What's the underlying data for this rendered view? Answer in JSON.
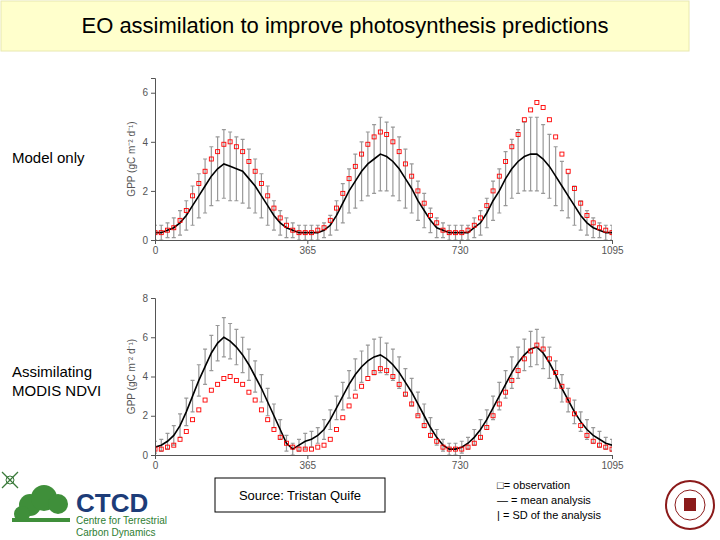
{
  "slide": {
    "title": "EO assimilation to improve photosynthesis predictions",
    "source": "Source: Tristan Quife",
    "key": [
      "□= observation",
      "— = mean analysis",
      "| = SD of the analysis"
    ],
    "logo": {
      "name": "CTCD",
      "lines": [
        "Centre for Terrestrial",
        "Carbon Dynamics"
      ]
    }
  },
  "chart_data": [
    {
      "type": "line",
      "title": "Model only",
      "y_label": "GPP (gC m⁻² d⁻¹)",
      "x": [
        0,
        15,
        30,
        45,
        60,
        75,
        90,
        105,
        120,
        135,
        150,
        165,
        180,
        195,
        210,
        225,
        240,
        255,
        270,
        285,
        300,
        315,
        330,
        345,
        360,
        375,
        390,
        405,
        420,
        435,
        450,
        465,
        480,
        495,
        510,
        525,
        540,
        555,
        570,
        585,
        600,
        615,
        630,
        645,
        660,
        675,
        690,
        705,
        720,
        735,
        750,
        765,
        780,
        795,
        810,
        825,
        840,
        855,
        870,
        885,
        900,
        915,
        930,
        945,
        960,
        975,
        990,
        1005,
        1020,
        1035,
        1050,
        1065,
        1080,
        1095
      ],
      "xlim": [
        0,
        1095
      ],
      "xticks": [
        0,
        365,
        730,
        1095
      ],
      "ylim": [
        0,
        6.6
      ],
      "yticks": [
        0,
        2,
        4,
        6
      ],
      "series": [
        {
          "type": "line",
          "color": "#000000",
          "line_style": "solid",
          "values": [
            0.3,
            0.3,
            0.4,
            0.5,
            0.7,
            1.0,
            1.4,
            1.8,
            2.2,
            2.6,
            2.9,
            3.1,
            3.0,
            2.9,
            2.8,
            2.5,
            2.2,
            1.8,
            1.4,
            1.0,
            0.7,
            0.5,
            0.4,
            0.3,
            0.3,
            0.3,
            0.3,
            0.4,
            0.6,
            1.0,
            1.5,
            2.0,
            2.4,
            2.8,
            3.1,
            3.3,
            3.5,
            3.4,
            3.2,
            2.9,
            2.5,
            2.1,
            1.6,
            1.2,
            0.8,
            0.5,
            0.4,
            0.3,
            0.3,
            0.3,
            0.3,
            0.5,
            0.7,
            1.1,
            1.6,
            2.0,
            2.5,
            2.9,
            3.2,
            3.4,
            3.5,
            3.5,
            3.3,
            3.0,
            2.6,
            2.2,
            1.8,
            1.4,
            1.0,
            0.7,
            0.5,
            0.4,
            0.3,
            0.3
          ],
          "errors": [
            0.3,
            0.3,
            0.3,
            0.4,
            0.5,
            0.6,
            0.8,
            0.9,
            1.1,
            1.2,
            1.3,
            1.4,
            1.4,
            1.3,
            1.3,
            1.2,
            1.1,
            0.9,
            0.8,
            0.6,
            0.5,
            0.4,
            0.3,
            0.3,
            0.3,
            0.3,
            0.3,
            0.3,
            0.4,
            0.6,
            0.8,
            0.9,
            1.1,
            1.2,
            1.3,
            1.4,
            1.5,
            1.4,
            1.4,
            1.3,
            1.2,
            1.0,
            0.8,
            0.7,
            0.5,
            0.4,
            0.3,
            0.3,
            0.3,
            0.3,
            0.3,
            0.4,
            0.5,
            0.6,
            0.8,
            0.9,
            1.1,
            1.2,
            1.3,
            1.4,
            1.5,
            1.5,
            1.4,
            1.3,
            1.2,
            1.0,
            0.9,
            0.8,
            0.6,
            0.5,
            0.4,
            0.3,
            0.3,
            0.3
          ]
        },
        {
          "type": "scatter",
          "color": "#ff0000",
          "marker": "square",
          "values": [
            0.3,
            0.3,
            0.4,
            0.5,
            0.8,
            1.2,
            1.8,
            2.3,
            2.8,
            3.3,
            3.6,
            3.9,
            4.0,
            3.8,
            3.6,
            3.2,
            2.8,
            2.3,
            1.8,
            1.3,
            0.9,
            0.6,
            0.4,
            0.3,
            0.3,
            0.3,
            0.4,
            0.5,
            0.8,
            1.3,
            1.9,
            2.5,
            3.0,
            3.5,
            3.9,
            4.2,
            4.4,
            4.3,
            4.0,
            3.6,
            3.1,
            2.6,
            2.0,
            1.5,
            1.0,
            0.7,
            0.4,
            0.3,
            0.3,
            0.3,
            0.4,
            0.6,
            0.9,
            1.4,
            2.0,
            2.6,
            3.2,
            3.8,
            4.3,
            4.9,
            5.3,
            5.6,
            5.4,
            4.9,
            4.2,
            3.5,
            2.8,
            2.1,
            1.5,
            1.0,
            0.7,
            0.5,
            0.4,
            0.3
          ]
        }
      ]
    },
    {
      "type": "line",
      "title": "Assimilating MODIS NDVI",
      "y_label": "GPP (gC m⁻² d⁻¹)",
      "x": [
        0,
        15,
        30,
        45,
        60,
        75,
        90,
        105,
        120,
        135,
        150,
        165,
        180,
        195,
        210,
        225,
        240,
        255,
        270,
        285,
        300,
        315,
        330,
        345,
        360,
        375,
        390,
        405,
        420,
        435,
        450,
        465,
        480,
        495,
        510,
        525,
        540,
        555,
        570,
        585,
        600,
        615,
        630,
        645,
        660,
        675,
        690,
        705,
        720,
        735,
        750,
        765,
        780,
        795,
        810,
        825,
        840,
        855,
        870,
        885,
        900,
        915,
        930,
        945,
        960,
        975,
        990,
        1005,
        1020,
        1035,
        1050,
        1065,
        1080,
        1095
      ],
      "xlim": [
        0,
        1095
      ],
      "xticks": [
        0,
        365,
        730,
        1095
      ],
      "ylim": [
        0,
        8
      ],
      "yticks": [
        0,
        2,
        4,
        6,
        8
      ],
      "series": [
        {
          "type": "line",
          "color": "#000000",
          "line_style": "solid",
          "values": [
            0.4,
            0.5,
            0.7,
            1.0,
            1.5,
            2.2,
            3.0,
            3.8,
            4.5,
            5.2,
            5.7,
            6.0,
            5.8,
            5.5,
            5.1,
            4.6,
            4.0,
            3.4,
            2.7,
            2.0,
            1.3,
            0.6,
            0.3,
            0.5,
            0.7,
            0.8,
            1.0,
            1.3,
            1.8,
            2.4,
            3.0,
            3.6,
            4.1,
            4.5,
            4.8,
            5.0,
            5.1,
            4.9,
            4.6,
            4.2,
            3.7,
            3.2,
            2.6,
            2.0,
            1.4,
            0.9,
            0.5,
            0.3,
            0.3,
            0.4,
            0.6,
            0.9,
            1.3,
            1.8,
            2.4,
            3.0,
            3.6,
            4.2,
            4.7,
            5.1,
            5.4,
            5.5,
            5.2,
            4.7,
            4.1,
            3.4,
            2.8,
            2.2,
            1.7,
            1.3,
            1.0,
            0.8,
            0.6,
            0.5
          ],
          "errors": [
            0.3,
            0.3,
            0.4,
            0.5,
            0.6,
            0.7,
            0.8,
            0.8,
            0.9,
            0.9,
            0.9,
            1.0,
            0.9,
            0.9,
            0.9,
            0.8,
            0.8,
            0.7,
            0.7,
            0.6,
            0.5,
            0.4,
            0.3,
            0.3,
            0.4,
            0.4,
            0.4,
            0.5,
            0.5,
            0.6,
            0.7,
            0.7,
            0.8,
            0.8,
            0.8,
            0.9,
            0.9,
            0.8,
            0.8,
            0.8,
            0.7,
            0.7,
            0.6,
            0.6,
            0.5,
            0.4,
            0.3,
            0.3,
            0.3,
            0.3,
            0.3,
            0.4,
            0.5,
            0.5,
            0.6,
            0.7,
            0.7,
            0.8,
            0.8,
            0.8,
            0.9,
            0.9,
            0.8,
            0.8,
            0.7,
            0.7,
            0.6,
            0.6,
            0.5,
            0.5,
            0.4,
            0.4,
            0.3,
            0.3
          ]
        },
        {
          "type": "scatter",
          "color": "#ff0000",
          "marker": "square",
          "values": [
            0.3,
            0.3,
            0.4,
            0.5,
            0.8,
            1.2,
            1.8,
            2.3,
            2.8,
            3.3,
            3.6,
            3.9,
            4.0,
            3.8,
            3.6,
            3.2,
            2.8,
            2.3,
            1.8,
            1.3,
            0.9,
            0.6,
            0.4,
            0.3,
            0.3,
            0.3,
            0.4,
            0.5,
            0.8,
            1.3,
            1.9,
            2.5,
            3.0,
            3.5,
            3.9,
            4.2,
            4.4,
            4.3,
            4.0,
            3.6,
            3.1,
            2.6,
            2.0,
            1.5,
            1.0,
            0.7,
            0.4,
            0.3,
            0.3,
            0.3,
            0.4,
            0.6,
            0.9,
            1.4,
            2.0,
            2.6,
            3.2,
            3.8,
            4.3,
            4.9,
            5.3,
            5.6,
            5.4,
            4.9,
            4.2,
            3.5,
            2.8,
            2.1,
            1.5,
            1.0,
            0.7,
            0.5,
            0.4,
            0.3
          ]
        }
      ]
    }
  ]
}
